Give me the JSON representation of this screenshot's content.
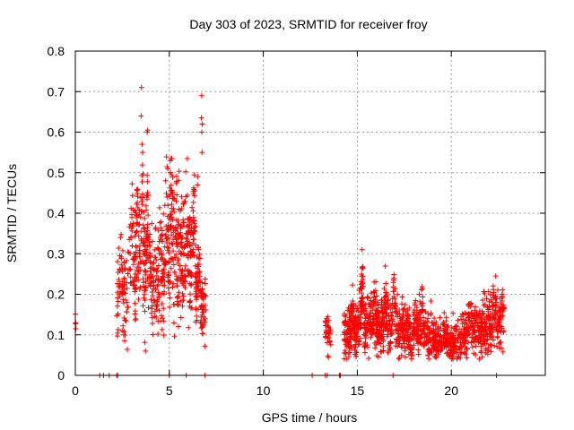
{
  "chart_data": {
    "type": "scatter",
    "title": "Day 303 of 2023, SRMTID for receiver froy",
    "xlabel": "GPS time / hours",
    "ylabel": "SRMTID / TECUs",
    "xlim": [
      0,
      25
    ],
    "ylim": [
      0,
      0.8
    ],
    "xticks": [
      0,
      5,
      10,
      15,
      20
    ],
    "xtick_labels": [
      "0",
      "5",
      "10",
      "15",
      "20"
    ],
    "yticks": [
      0,
      0.1,
      0.2,
      0.3,
      0.4,
      0.5,
      0.6,
      0.7,
      0.8
    ],
    "ytick_labels": [
      "0",
      "0.1",
      "0.2",
      "0.3",
      "0.4",
      "0.5",
      "0.6",
      "0.7",
      "0.8"
    ],
    "grid": true,
    "marker": "+",
    "color": "#ff0000",
    "series": [
      {
        "name": "SRMTID",
        "segments": [
          {
            "t0": 0.0,
            "t1": 0.05,
            "n": 4,
            "base": 0.13,
            "noise": 0.01,
            "peaks": []
          },
          {
            "t0": 2.2,
            "t1": 3.15,
            "n": 110,
            "base": 0.2,
            "noise": 0.06,
            "peaks": [
              [
                2.4,
                0.05
              ],
              [
                2.9,
                0.1
              ],
              [
                3.05,
                0.15
              ]
            ]
          },
          {
            "t0": 3.15,
            "t1": 4.0,
            "n": 170,
            "base": 0.24,
            "noise": 0.08,
            "peaks": [
              [
                3.3,
                0.12
              ],
              [
                3.55,
                0.18
              ],
              [
                3.85,
                0.15
              ]
            ]
          },
          {
            "t0": 4.0,
            "t1": 5.0,
            "n": 160,
            "base": 0.23,
            "noise": 0.07,
            "peaks": [
              [
                4.5,
                0.07
              ],
              [
                4.85,
                0.17
              ]
            ]
          },
          {
            "t0": 5.0,
            "t1": 5.6,
            "n": 120,
            "base": 0.27,
            "noise": 0.09,
            "peaks": [
              [
                5.1,
                0.14
              ],
              [
                5.35,
                0.05
              ]
            ]
          },
          {
            "t0": 5.6,
            "t1": 6.4,
            "n": 160,
            "base": 0.28,
            "noise": 0.07,
            "peaks": [
              [
                5.95,
                0.07
              ],
              [
                6.3,
                0.13
              ]
            ]
          },
          {
            "t0": 6.4,
            "t1": 6.95,
            "n": 90,
            "base": 0.17,
            "noise": 0.04,
            "peaks": [
              [
                6.55,
                0.08
              ]
            ]
          },
          {
            "t0": 13.3,
            "t1": 13.6,
            "n": 30,
            "base": 0.11,
            "noise": 0.025,
            "peaks": []
          },
          {
            "t0": 14.3,
            "t1": 15.0,
            "n": 150,
            "base": 0.11,
            "noise": 0.03,
            "peaks": [
              [
                14.75,
                0.03
              ]
            ]
          },
          {
            "t0": 15.0,
            "t1": 16.2,
            "n": 230,
            "base": 0.12,
            "noise": 0.035,
            "peaks": [
              [
                15.25,
                0.09
              ],
              [
                15.9,
                0.05
              ]
            ]
          },
          {
            "t0": 16.2,
            "t1": 17.5,
            "n": 220,
            "base": 0.12,
            "noise": 0.035,
            "peaks": [
              [
                16.5,
                0.05
              ],
              [
                16.95,
                0.08
              ]
            ]
          },
          {
            "t0": 17.5,
            "t1": 19.0,
            "n": 230,
            "base": 0.1,
            "noise": 0.03,
            "peaks": [
              [
                18.1,
                0.04
              ],
              [
                18.45,
                0.06
              ]
            ]
          },
          {
            "t0": 19.0,
            "t1": 20.5,
            "n": 220,
            "base": 0.08,
            "noise": 0.025,
            "peaks": [
              [
                19.6,
                0.03
              ]
            ]
          },
          {
            "t0": 20.5,
            "t1": 21.6,
            "n": 170,
            "base": 0.11,
            "noise": 0.03,
            "peaks": [
              [
                21.0,
                0.04
              ]
            ]
          },
          {
            "t0": 21.6,
            "t1": 22.8,
            "n": 190,
            "base": 0.12,
            "noise": 0.035,
            "peaks": [
              [
                22.3,
                0.04
              ],
              [
                22.7,
                0.05
              ]
            ]
          }
        ],
        "outliers": [
          [
            3.52,
            0.71
          ],
          [
            3.5,
            0.64
          ],
          [
            3.82,
            0.6
          ],
          [
            3.85,
            0.605
          ],
          [
            3.55,
            0.57
          ],
          [
            3.58,
            0.55
          ],
          [
            4.88,
            0.515
          ],
          [
            4.92,
            0.51
          ],
          [
            6.52,
            0.49
          ],
          [
            6.5,
            0.47
          ],
          [
            6.72,
            0.69
          ],
          [
            6.7,
            0.635
          ],
          [
            6.75,
            0.62
          ],
          [
            6.73,
            0.6
          ],
          [
            6.74,
            0.55
          ],
          [
            15.25,
            0.31
          ],
          [
            15.3,
            0.265
          ],
          [
            16.95,
            0.24
          ],
          [
            18.3,
            0.2
          ],
          [
            22.7,
            0.2
          ]
        ],
        "zero_points": [
          1.3,
          1.5,
          1.8,
          2.2,
          2.25,
          5.0,
          5.9,
          6.9,
          12.6,
          13.3,
          13.4,
          14.05,
          14.1,
          16.9,
          22.4
        ]
      }
    ]
  }
}
